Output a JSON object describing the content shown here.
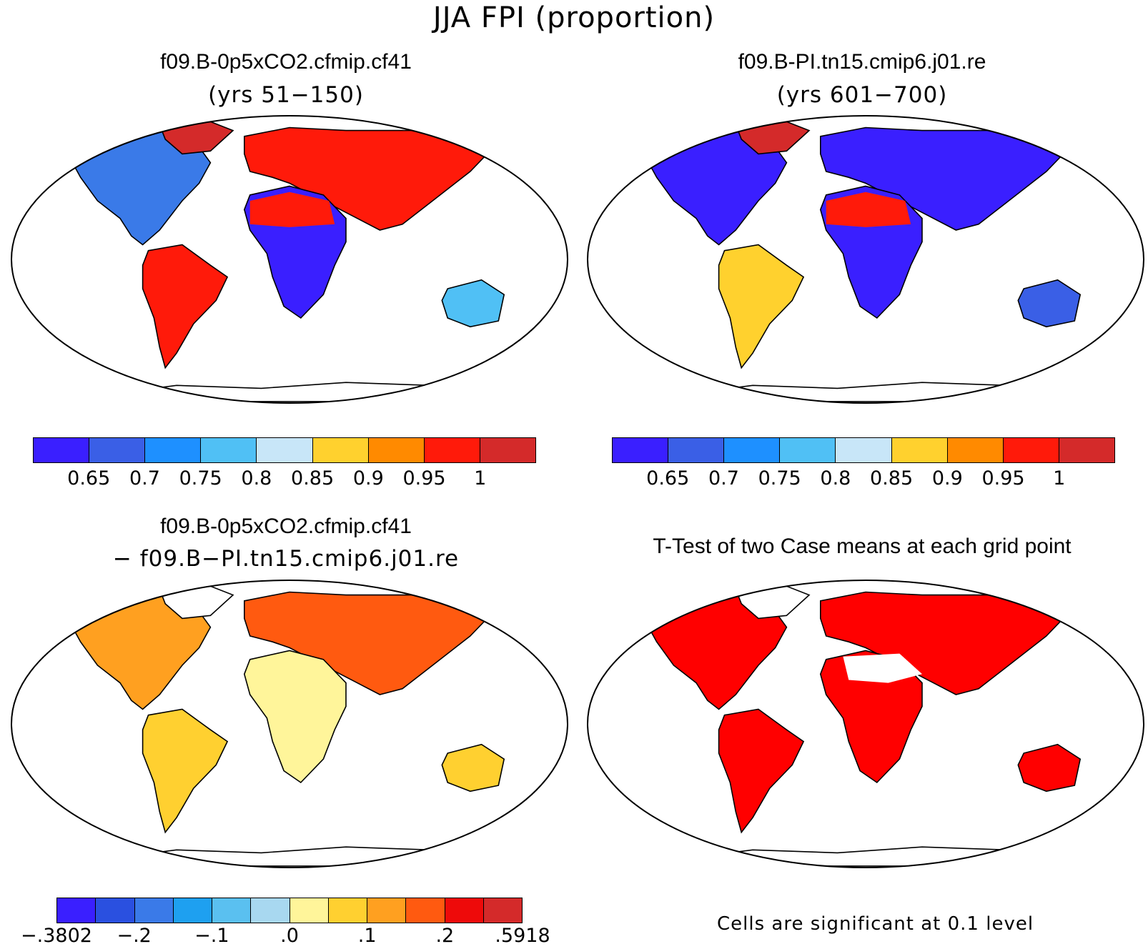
{
  "main_title": "JJA FPI (proportion)",
  "panels": [
    {
      "title": "f09.B-0p5xCO2.cfmip.cf41",
      "subtitle": "(yrs 51−150)",
      "colorbar": {
        "colors": [
          "#3a1fff",
          "#3a5fe6",
          "#1e90ff",
          "#50c0f5",
          "#c8e6f8",
          "#ffd12e",
          "#ff8a00",
          "#ff1a0a",
          "#d42a2a"
        ],
        "labels": [
          "0.65",
          "0.7",
          "0.75",
          "0.8",
          "0.85",
          "0.9",
          "0.95",
          "1"
        ]
      }
    },
    {
      "title": "f09.B-PI.tn15.cmip6.j01.re",
      "subtitle": "(yrs 601−700)",
      "colorbar": {
        "colors": [
          "#3a1fff",
          "#3a5fe6",
          "#1e90ff",
          "#50c0f5",
          "#c8e6f8",
          "#ffd12e",
          "#ff8a00",
          "#ff1a0a",
          "#d42a2a"
        ],
        "labels": [
          "0.65",
          "0.7",
          "0.75",
          "0.8",
          "0.85",
          "0.9",
          "0.95",
          "1"
        ]
      }
    },
    {
      "title": "f09.B-0p5xCO2.cfmip.cf41",
      "subtitle": "− f09.B−PI.tn15.cmip6.j01.re",
      "colorbar": {
        "colors": [
          "#3a1fff",
          "#2a50e0",
          "#3a7ae8",
          "#1ea0f0",
          "#5ac0f0",
          "#a8d8f0",
          "#fff59a",
          "#ffd030",
          "#ffa020",
          "#ff5a10",
          "#ee0a0a",
          "#d42a2a"
        ],
        "labels": [
          "−.3802",
          "−.2",
          "−.1",
          ".0",
          ".1",
          ".2",
          ".5918"
        ]
      }
    },
    {
      "title": "T-Test of two Case means at each grid point",
      "note": "Cells are significant at 0.1 level"
    }
  ],
  "chart_data": [
    {
      "type": "map",
      "title": "f09.B-0p5xCO2.cfmip.cf41",
      "subtitle": "(yrs 51−150)",
      "colorbar_ticks": [
        0.65,
        0.7,
        0.75,
        0.8,
        0.85,
        0.9,
        0.95,
        1
      ]
    },
    {
      "type": "map",
      "title": "f09.B-PI.tn15.cmip6.j01.re",
      "subtitle": "(yrs 601−700)",
      "colorbar_ticks": [
        0.65,
        0.7,
        0.75,
        0.8,
        0.85,
        0.9,
        0.95,
        1
      ]
    },
    {
      "type": "map",
      "title": "f09.B-0p5xCO2.cfmip.cf41 − f09.B−PI.tn15.cmip6.j01.re",
      "colorbar_min": -0.3802,
      "colorbar_max": 0.5918,
      "colorbar_ticks": [
        -0.2,
        -0.1,
        0.0,
        0.1,
        0.2
      ]
    },
    {
      "type": "map",
      "title": "T-Test of two Case means at each grid point",
      "significance_level": 0.1,
      "significant_color": "#ff0000"
    }
  ]
}
